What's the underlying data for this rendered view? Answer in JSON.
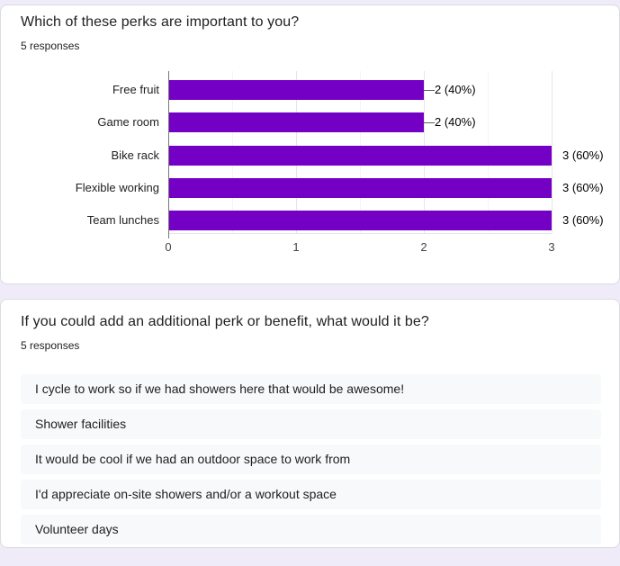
{
  "page": {
    "background_color": "#f0ebf8",
    "card_color": "#ffffff"
  },
  "question1": {
    "title": "Which of these perks are important to you?",
    "responses_count": "5 responses"
  },
  "chart_data": {
    "type": "bar",
    "orientation": "horizontal",
    "title": "",
    "xlabel": "",
    "ylabel": "",
    "categories": [
      "Free fruit",
      "Game room",
      "Bike rack",
      "Flexible working",
      "Team lunches"
    ],
    "values": [
      2,
      2,
      3,
      3,
      3
    ],
    "value_labels": [
      "2 (40%)",
      "2 (40%)",
      "3 (60%)",
      "3 (60%)",
      "3 (60%)"
    ],
    "xlim": [
      0,
      3
    ],
    "x_ticks": [
      "0",
      "1",
      "2",
      "3"
    ],
    "grid": "vertical major and minor gridlines",
    "legend": "none",
    "bar_color": "#7300c4"
  },
  "question2": {
    "title": "If you could add an additional perk or benefit, what would it be?",
    "responses_count": "5 responses",
    "answers": [
      "I cycle to work so if we had showers here that would be awesome!",
      "Shower facilities",
      "It would be cool if we had an outdoor space to work from",
      "I'd appreciate on-site showers and/or a workout space",
      "Volunteer days"
    ]
  }
}
